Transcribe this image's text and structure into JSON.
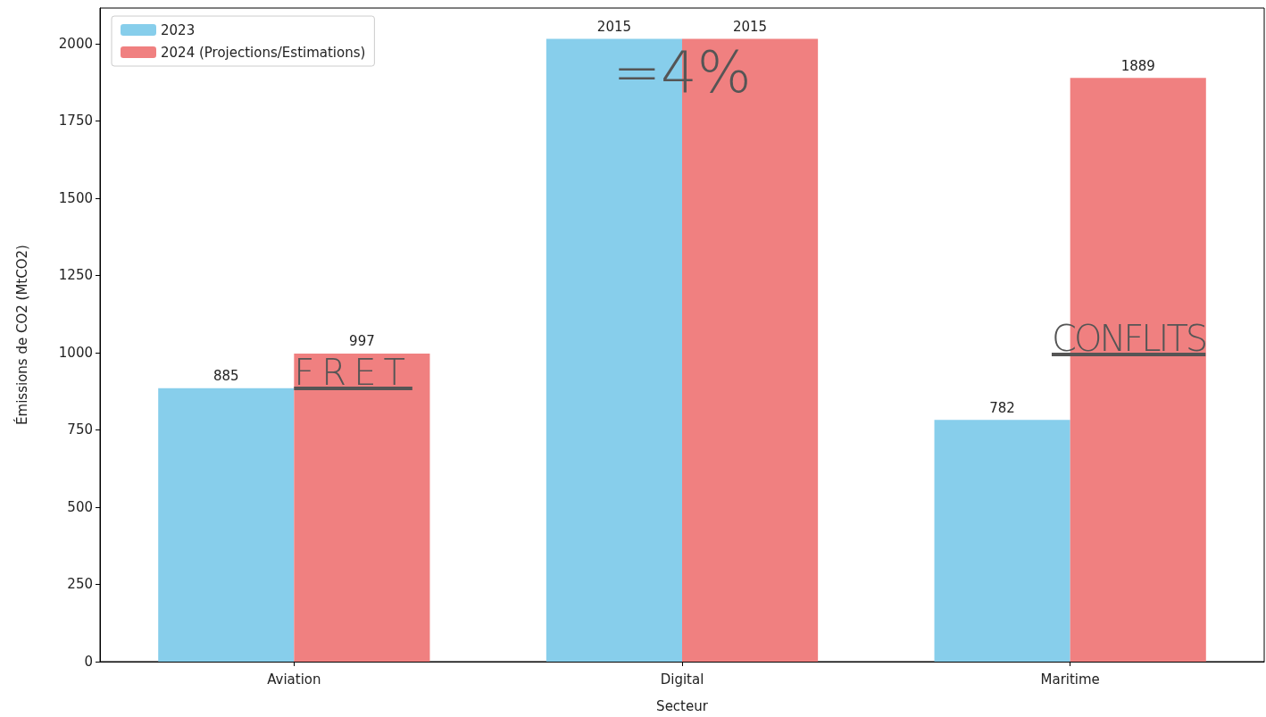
{
  "chart_data": {
    "type": "bar",
    "xlabel": "Secteur",
    "ylabel": "Émissions de CO2 (MtCO2)",
    "categories": [
      "Aviation",
      "Digital",
      "Maritime"
    ],
    "series": [
      {
        "name": "2023",
        "color": "#87ceeb",
        "values": [
          885,
          2015,
          782
        ]
      },
      {
        "name": "2024 (Projections/Estimations)",
        "color": "#f08080",
        "values": [
          997,
          2015,
          1889
        ]
      }
    ],
    "ylim": [
      0,
      2115
    ],
    "yticks": [
      0,
      250,
      500,
      750,
      1000,
      1250,
      1500,
      1750,
      2000
    ],
    "grid": false,
    "legend": "top left",
    "data_labels": true,
    "annotations": [
      {
        "text": "FRET",
        "x": "Aviation",
        "y": 870
      },
      {
        "text": "=4%",
        "x": "Digital",
        "y": 1800
      },
      {
        "text": "CONFLITS",
        "x": "Maritime",
        "y": 980
      }
    ]
  }
}
